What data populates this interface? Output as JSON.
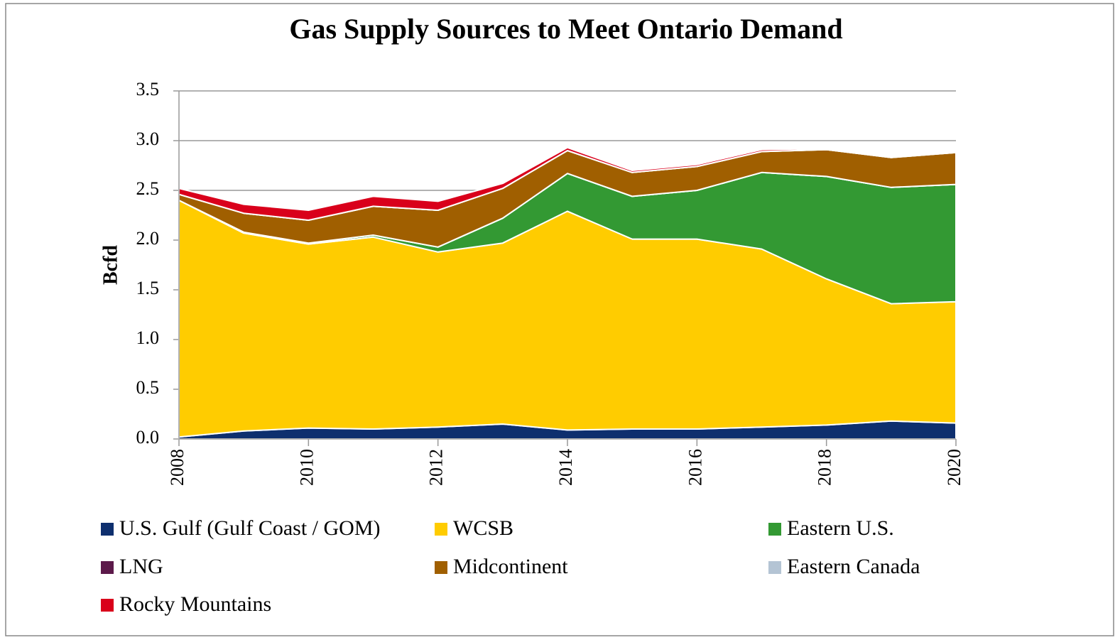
{
  "chart_data": {
    "type": "stacked_area",
    "title": "Gas Supply Sources to Meet Ontario Demand",
    "ylabel": "Bcfd",
    "x": [
      2008,
      2009,
      2010,
      2011,
      2012,
      2013,
      2014,
      2015,
      2016,
      2017,
      2018,
      2019,
      2020
    ],
    "xlim": [
      2008,
      2020
    ],
    "xticks": [
      2008,
      2010,
      2012,
      2014,
      2016,
      2018,
      2020
    ],
    "ylim": [
      0,
      3.5
    ],
    "yticks": [
      {
        "value": 0,
        "label": "0.0"
      },
      {
        "value": 0.5,
        "label": "0.5"
      },
      {
        "value": 1,
        "label": "1.0"
      },
      {
        "value": 1.5,
        "label": "1.5"
      },
      {
        "value": 2,
        "label": "2.0"
      },
      {
        "value": 2.5,
        "label": "2.5"
      },
      {
        "value": 3,
        "label": "3.0"
      },
      {
        "value": 3.5,
        "label": "3.5"
      }
    ],
    "grid": true,
    "series": [
      {
        "name": "U.S. Gulf (Gulf Coast / GOM)",
        "color": "#0e2f6e",
        "values": [
          0.02,
          0.08,
          0.11,
          0.1,
          0.12,
          0.15,
          0.09,
          0.1,
          0.1,
          0.12,
          0.14,
          0.18,
          0.16
        ]
      },
      {
        "name": "WCSB",
        "color": "#ffcc00",
        "values": [
          2.38,
          1.99,
          1.85,
          1.93,
          1.76,
          1.82,
          2.2,
          1.91,
          1.91,
          1.79,
          1.47,
          1.18,
          1.22
        ]
      },
      {
        "name": "Eastern U.S.",
        "color": "#339933",
        "values": [
          0,
          0.01,
          0.01,
          0.02,
          0.05,
          0.25,
          0.38,
          0.43,
          0.49,
          0.77,
          1.03,
          1.17,
          1.18
        ]
      },
      {
        "name": "LNG",
        "color": "#5c1a4a",
        "values": [
          0,
          0,
          0,
          0,
          0,
          0,
          0,
          0,
          0,
          0,
          0,
          0,
          0
        ]
      },
      {
        "name": "Midcontinent",
        "color": "#a05f00",
        "values": [
          0.06,
          0.19,
          0.23,
          0.29,
          0.37,
          0.3,
          0.23,
          0.24,
          0.24,
          0.21,
          0.27,
          0.3,
          0.32
        ]
      },
      {
        "name": "Eastern Canada",
        "color": "#b4c4d4",
        "values": [
          0,
          0,
          0,
          0,
          0,
          0,
          0,
          0,
          0,
          0,
          0,
          0,
          0
        ]
      },
      {
        "name": "Rocky Mountains",
        "color": "#d9001b",
        "values": [
          0.06,
          0.09,
          0.1,
          0.1,
          0.09,
          0.05,
          0.03,
          0.02,
          0.02,
          0.02,
          0.01,
          0.01,
          0.01
        ]
      }
    ]
  }
}
